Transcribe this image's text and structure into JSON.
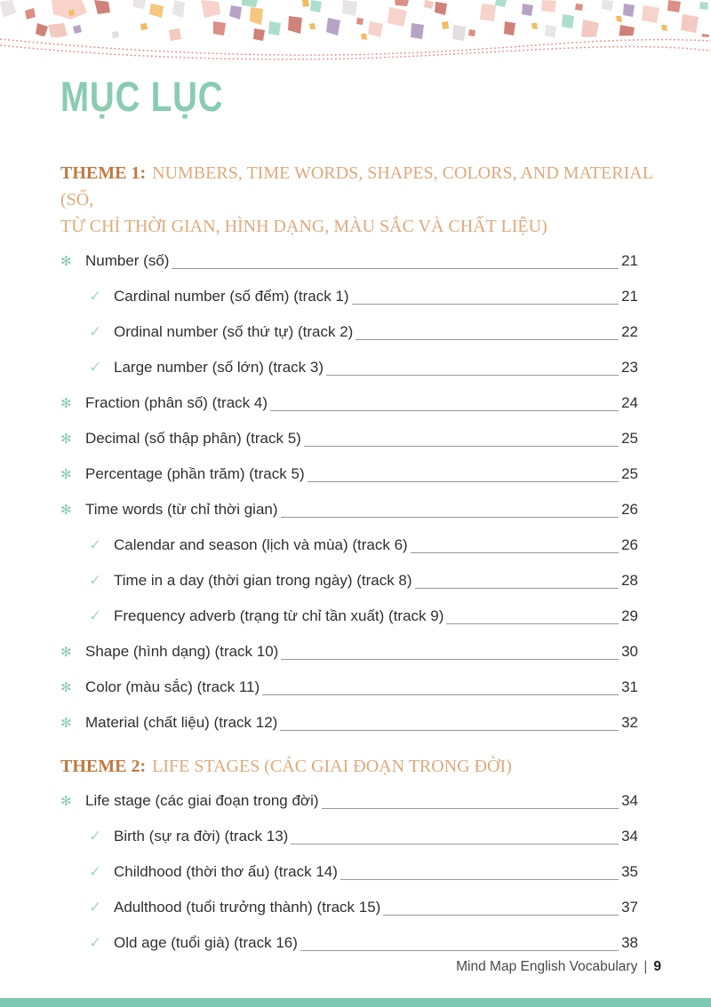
{
  "page_title": "MỤC LỤC",
  "bullets": {
    "star": "✻",
    "check": "✓"
  },
  "colors": {
    "title": "#89ccb1",
    "theme_label": "#c0793e",
    "theme_title": "#e0a97c",
    "star_bullet": "#86ccb2",
    "check_bullet": "#a6d8c2",
    "entry_text": "#303030",
    "leader_line": "#979797",
    "bottom_bar": "#7dc8b0",
    "wave_dots": "#e5968e",
    "terrazzo_palette": [
      "#f7d3cc",
      "#f4c9c2",
      "#cf8278",
      "#dd8e86",
      "#abdfcc",
      "#b7a3c4",
      "#f6c77d",
      "#f2bc64",
      "#e9e4e6"
    ]
  },
  "themes": [
    {
      "label": "THEME 1:",
      "title_lines": [
        "NUMBERS, TIME WORDS, SHAPES, COLORS, AND MATERIAL (SỐ,",
        "TỪ CHỈ THỜI GIAN, HÌNH DẠNG, MÀU SẮC VÀ CHẤT LIỆU)"
      ],
      "entries": [
        {
          "level": 1,
          "text": "Number (số)",
          "page": "21"
        },
        {
          "level": 2,
          "text": "Cardinal number (số đếm) (track 1)",
          "page": "21"
        },
        {
          "level": 2,
          "text": "Ordinal number (số thứ tự) (track 2)",
          "page": "22"
        },
        {
          "level": 2,
          "text": "Large number (số lớn) (track 3)",
          "page": "23"
        },
        {
          "level": 1,
          "text": "Fraction (phân số) (track 4)",
          "page": "24"
        },
        {
          "level": 1,
          "text": "Decimal (số thập phân) (track 5)",
          "page": "25"
        },
        {
          "level": 1,
          "text": "Percentage (phần trăm) (track 5)",
          "page": "25"
        },
        {
          "level": 1,
          "text": "Time words (từ chỉ thời gian)",
          "page": "26"
        },
        {
          "level": 2,
          "text": "Calendar and season (lịch và mùa) (track 6)",
          "page": "26"
        },
        {
          "level": 2,
          "text": "Time in a day (thời gian trong ngày) (track 8)",
          "page": "28"
        },
        {
          "level": 2,
          "text": "Frequency adverb (trạng từ chỉ tần xuất) (track 9)",
          "page": "29"
        },
        {
          "level": 1,
          "text": "Shape (hình dạng) (track 10)",
          "page": "30"
        },
        {
          "level": 1,
          "text": "Color (màu sắc) (track 11)",
          "page": "31"
        },
        {
          "level": 1,
          "text": "Material (chất liệu) (track 12)",
          "page": "32"
        }
      ]
    },
    {
      "label": "THEME 2:",
      "title_lines": [
        "LIFE STAGES (CÁC GIAI ĐOẠN TRONG ĐỜI)"
      ],
      "entries": [
        {
          "level": 1,
          "text": "Life stage (các giai đoạn trong đời)",
          "page": "34"
        },
        {
          "level": 2,
          "text": "Birth (sự ra đời) (track 13)",
          "page": "34"
        },
        {
          "level": 2,
          "text": "Childhood (thời thơ ấu) (track 14)",
          "page": "35"
        },
        {
          "level": 2,
          "text": "Adulthood (tuổi trưởng thành) (track 15)",
          "page": "37"
        },
        {
          "level": 2,
          "text": "Old age (tuổi già) (track 16)",
          "page": "38"
        }
      ]
    }
  ],
  "footer": {
    "book_title": "Mind Map English Vocabulary",
    "separator": "|",
    "page_number": "9"
  }
}
